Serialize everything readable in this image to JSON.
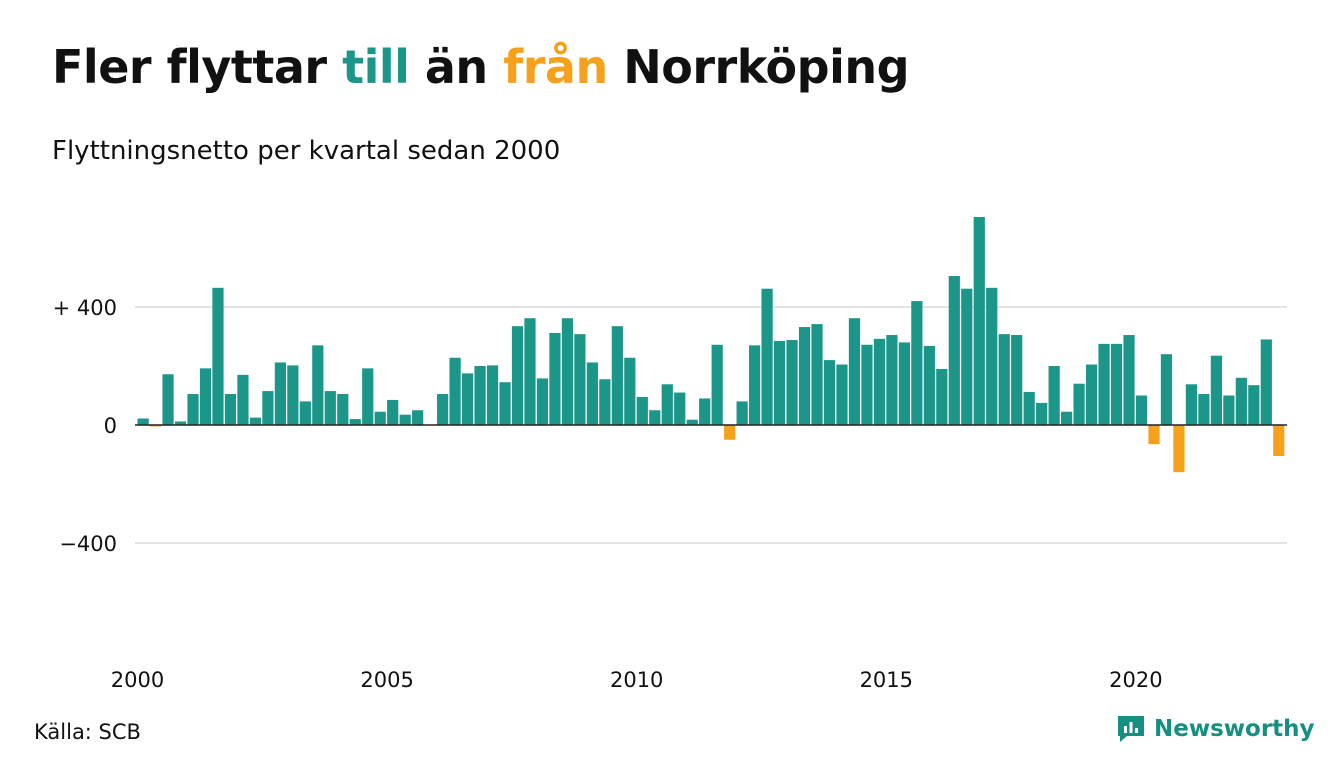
{
  "title": {
    "part1": "Fler flyttar ",
    "part2": "till",
    "part3": " än ",
    "part4": "från",
    "part5": " Norrköping"
  },
  "subtitle": "Flyttningsnetto per kvartal sedan 2000",
  "source": "Källa: SCB",
  "brand": "Newsworthy",
  "colors": {
    "positive": "#1b9688",
    "negative": "#f5a11c",
    "text": "#111111",
    "grid": "#e3e3e3"
  },
  "chart_data": {
    "type": "bar",
    "xlabel": "",
    "ylabel": "",
    "ylim": [
      -400,
      700
    ],
    "yticks": [
      {
        "value": 400,
        "label": "+ 400"
      },
      {
        "value": 0,
        "label": "0"
      },
      {
        "value": -400,
        "label": "−400"
      }
    ],
    "xticks": [
      "2000",
      "2005",
      "2010",
      "2015",
      "2020"
    ],
    "start_year": 2000,
    "grid": true,
    "legend": "none",
    "series": [
      {
        "values": [
          22,
          -5,
          172,
          12,
          105,
          192,
          465,
          105,
          170,
          25,
          115,
          212,
          202,
          80,
          270,
          115,
          105,
          20,
          192,
          45,
          85,
          35,
          50,
          0,
          105,
          228,
          175,
          200,
          202,
          145,
          335,
          362,
          158,
          312,
          362,
          308,
          212,
          155,
          335,
          228,
          95,
          50,
          138,
          110,
          18,
          90,
          272,
          -50,
          80,
          270,
          462,
          285,
          288,
          332,
          342,
          220,
          205,
          362,
          272,
          292,
          305,
          280,
          420,
          268,
          190,
          505,
          462,
          705,
          465,
          308,
          305,
          112,
          75,
          200,
          45,
          140,
          205,
          275,
          275,
          305,
          100,
          -65,
          240,
          -160,
          138,
          105,
          235,
          100,
          160,
          135,
          290,
          -105
        ]
      }
    ]
  }
}
